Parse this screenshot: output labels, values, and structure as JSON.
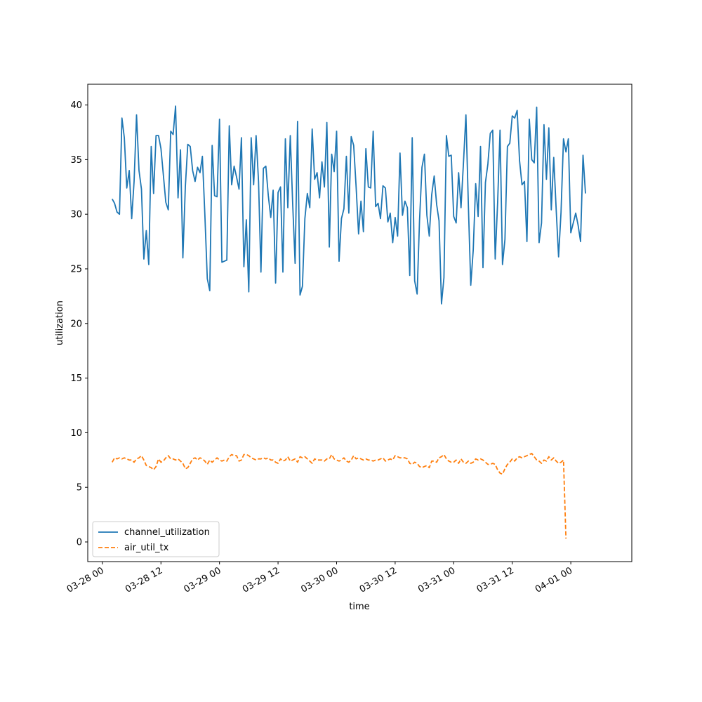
{
  "chart_data": {
    "type": "line",
    "title": "",
    "xlabel": "time",
    "ylabel": "utilization",
    "x_start": "2024-03-28T02:00",
    "x_step_minutes": 30,
    "xlim": [
      "2024-03-27T21:00",
      "2024-04-01T12:30"
    ],
    "ylim": [
      -1.8,
      41.9
    ],
    "yticks": [
      0,
      5,
      10,
      15,
      20,
      25,
      30,
      35,
      40
    ],
    "xticks": [
      {
        "t": "2024-03-28T00:00",
        "label": "03-28 00"
      },
      {
        "t": "2024-03-28T12:00",
        "label": "03-28 12"
      },
      {
        "t": "2024-03-29T00:00",
        "label": "03-29 00"
      },
      {
        "t": "2024-03-29T12:00",
        "label": "03-29 12"
      },
      {
        "t": "2024-03-30T00:00",
        "label": "03-30 00"
      },
      {
        "t": "2024-03-30T12:00",
        "label": "03-30 12"
      },
      {
        "t": "2024-03-31T00:00",
        "label": "03-31 00"
      },
      {
        "t": "2024-03-31T12:00",
        "label": "03-31 12"
      },
      {
        "t": "2024-04-01T00:00",
        "label": "04-01 00"
      }
    ],
    "grid": false,
    "legend_position": "lower-left",
    "series": [
      {
        "name": "channel_utilization",
        "color": "#1f77b4",
        "dash": "solid",
        "values": [
          31.4,
          31.0,
          30.2,
          30.0,
          38.8,
          37.0,
          32.4,
          34.0,
          29.6,
          33.0,
          39.1,
          34.0,
          32.3,
          25.9,
          28.5,
          25.4,
          36.2,
          31.9,
          37.2,
          37.2,
          36.0,
          33.6,
          31.1,
          30.4,
          37.6,
          37.3,
          39.9,
          31.5,
          35.9,
          26.0,
          32.5,
          36.4,
          36.2,
          34.0,
          33.0,
          34.3,
          33.8,
          35.3,
          30.0,
          24.1,
          23.0,
          36.3,
          31.7,
          31.6,
          38.7,
          25.6,
          25.7,
          25.8,
          38.1,
          32.7,
          34.4,
          33.4,
          32.3,
          37.0,
          25.2,
          29.5,
          22.9,
          37.0,
          32.7,
          37.2,
          33.0,
          24.7,
          34.2,
          34.4,
          31.7,
          29.7,
          32.2,
          23.7,
          32.0,
          32.5,
          24.7,
          36.9,
          30.6,
          37.2,
          31.0,
          25.5,
          38.5,
          22.6,
          23.4,
          29.6,
          31.9,
          30.6,
          37.8,
          33.2,
          33.8,
          31.5,
          34.8,
          32.5,
          38.4,
          27.0,
          35.5,
          33.9,
          37.6,
          25.7,
          29.6,
          30.5,
          35.3,
          30.1,
          37.1,
          36.3,
          32.5,
          28.2,
          31.2,
          28.4,
          36.0,
          32.5,
          32.4,
          37.6,
          30.7,
          31.0,
          29.6,
          32.6,
          32.4,
          29.3,
          30.1,
          27.4,
          29.7,
          28.0,
          35.6,
          29.9,
          31.2,
          30.6,
          24.4,
          37.0,
          23.9,
          22.7,
          29.4,
          34.3,
          35.5,
          29.9,
          28.0,
          31.8,
          33.5,
          30.9,
          29.4,
          21.8,
          24.2,
          37.2,
          35.3,
          35.4,
          29.8,
          29.2,
          33.8,
          30.6,
          34.7,
          39.1,
          30.8,
          23.5,
          26.7,
          32.8,
          29.8,
          36.2,
          25.1,
          32.9,
          34.6,
          37.4,
          37.7,
          25.9,
          31.1,
          37.7,
          25.4,
          27.7,
          36.2,
          36.5,
          39.0,
          38.8,
          39.5,
          34.9,
          32.7,
          33.0,
          27.5,
          38.7,
          35.0,
          34.7,
          39.8,
          27.4,
          29.2,
          38.2,
          33.2,
          37.9,
          30.4,
          35.2,
          30.4,
          26.1,
          30.2,
          36.9,
          35.7,
          36.9,
          28.3,
          29.2,
          30.1,
          29.0,
          27.5,
          35.4,
          31.9
        ]
      },
      {
        "name": "air_util_tx",
        "color": "#ff7f0e",
        "dash": "dashed",
        "values": [
          7.3,
          7.7,
          7.6,
          7.7,
          7.6,
          7.7,
          7.6,
          7.5,
          7.5,
          7.3,
          7.6,
          7.7,
          7.9,
          7.5,
          7.0,
          6.9,
          6.8,
          6.6,
          6.9,
          7.6,
          7.3,
          7.4,
          7.7,
          7.9,
          7.6,
          7.6,
          7.5,
          7.6,
          7.4,
          7.2,
          6.7,
          6.8,
          7.2,
          7.6,
          7.7,
          7.5,
          7.7,
          7.6,
          7.4,
          7.1,
          7.5,
          7.3,
          7.5,
          7.7,
          7.5,
          7.4,
          7.5,
          7.4,
          7.8,
          8.0,
          7.9,
          7.9,
          7.4,
          7.5,
          8.0,
          8.0,
          7.9,
          7.7,
          7.6,
          7.5,
          7.6,
          7.6,
          7.7,
          7.6,
          7.7,
          7.5,
          7.5,
          7.3,
          7.2,
          7.6,
          7.4,
          7.5,
          7.8,
          7.4,
          7.5,
          7.6,
          7.3,
          7.8,
          7.7,
          7.8,
          7.6,
          7.4,
          7.2,
          7.6,
          7.5,
          7.5,
          7.5,
          7.4,
          7.6,
          7.6,
          8.0,
          7.6,
          7.5,
          7.4,
          7.5,
          7.7,
          7.4,
          7.3,
          7.5,
          7.9,
          7.6,
          7.7,
          7.6,
          7.5,
          7.6,
          7.5,
          7.5,
          7.4,
          7.5,
          7.5,
          7.6,
          7.7,
          7.4,
          7.5,
          7.6,
          7.5,
          7.9,
          7.8,
          7.7,
          7.7,
          7.7,
          7.6,
          7.2,
          7.1,
          7.3,
          7.2,
          6.9,
          6.8,
          6.9,
          7.0,
          6.8,
          7.4,
          7.4,
          7.3,
          7.7,
          7.8,
          8.0,
          7.6,
          7.4,
          7.3,
          7.3,
          7.5,
          7.2,
          7.6,
          7.3,
          7.2,
          7.4,
          7.2,
          7.3,
          7.6,
          7.5,
          7.6,
          7.5,
          7.3,
          7.1,
          7.1,
          7.2,
          7.1,
          6.6,
          6.3,
          6.2,
          6.7,
          7.1,
          7.3,
          7.6,
          7.4,
          7.7,
          7.8,
          7.7,
          7.8,
          7.9,
          8.0,
          8.1,
          7.8,
          7.5,
          7.4,
          7.2,
          7.5,
          7.4,
          7.8,
          7.5,
          7.7,
          7.4,
          7.2,
          7.3,
          7.5,
          0.3
        ]
      }
    ]
  }
}
